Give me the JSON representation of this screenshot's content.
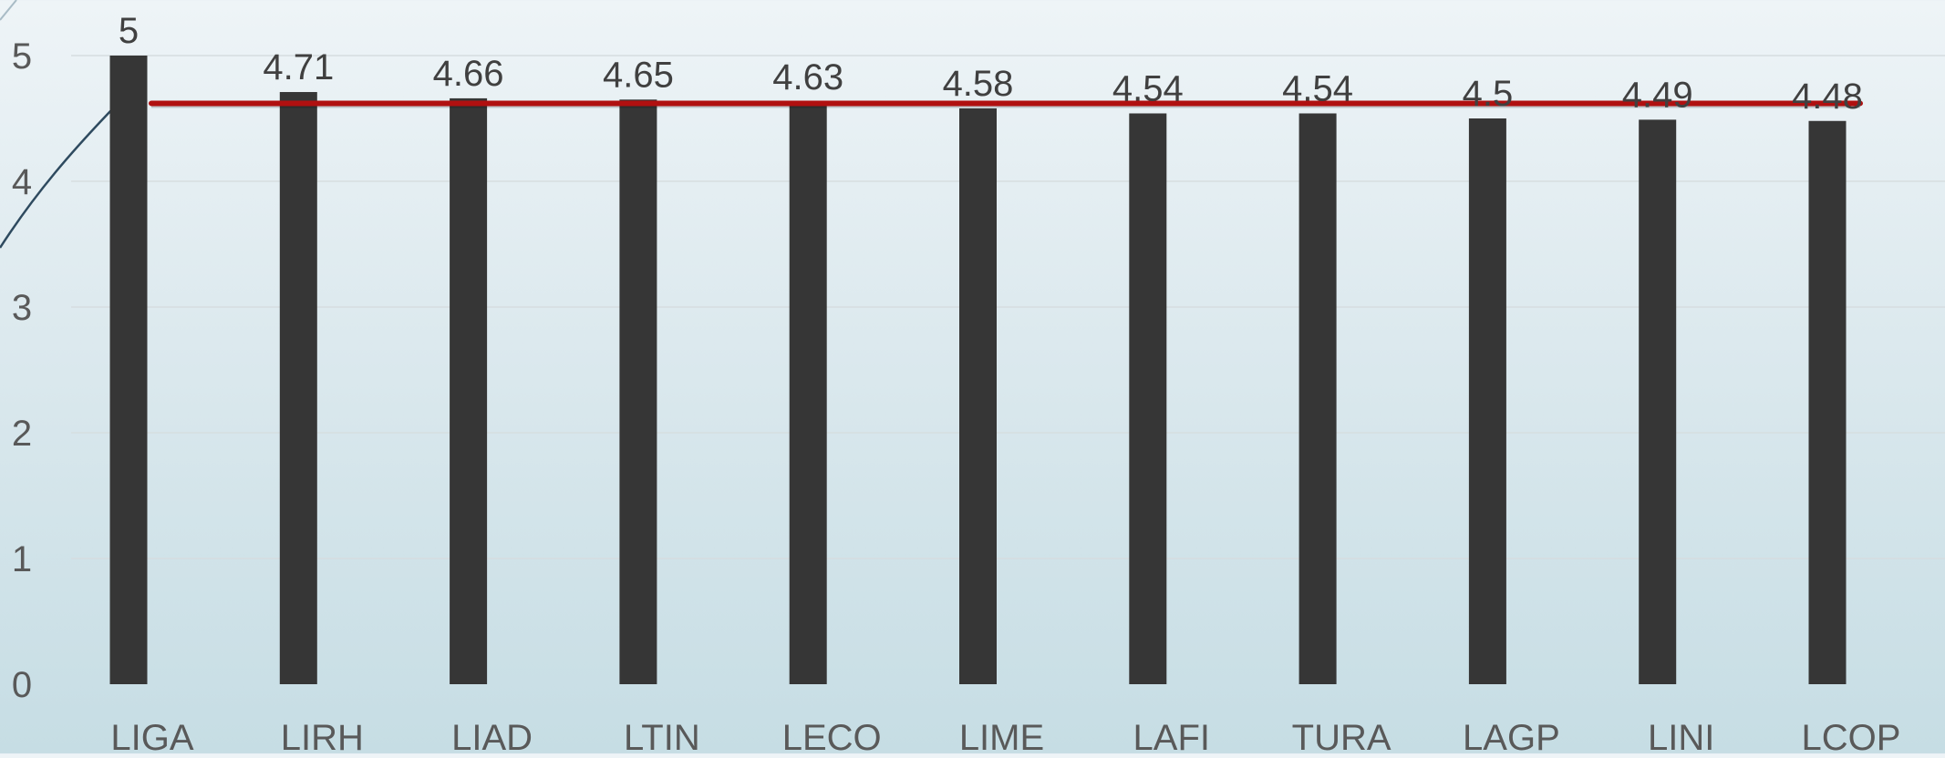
{
  "chart_data": {
    "type": "bar",
    "categories": [
      "LIGA",
      "LIRH",
      "LIAD",
      "LTIN",
      "LECO",
      "LIME",
      "LAFI",
      "TURA",
      "LAGP",
      "LINI",
      "LCOP"
    ],
    "series": [
      {
        "values": [
          5,
          4.71,
          4.66,
          4.65,
          4.63,
          4.58,
          4.54,
          4.54,
          4.5,
          4.49,
          4.48
        ],
        "color": "#363636"
      }
    ],
    "data_labels": [
      "5",
      "4.71",
      "4.66",
      "4.65",
      "4.63",
      "4.58",
      "4.54",
      "4.54",
      "4.5",
      "4.49",
      "4.48"
    ],
    "y_ticks": [
      "0",
      "1",
      "2",
      "3",
      "4",
      "5"
    ],
    "ylim": [
      0,
      5
    ],
    "reference_line": {
      "value": 4.62,
      "color": "#b01010"
    },
    "grid": true,
    "legend": "none",
    "title": "",
    "xlabel": "",
    "ylabel": ""
  }
}
